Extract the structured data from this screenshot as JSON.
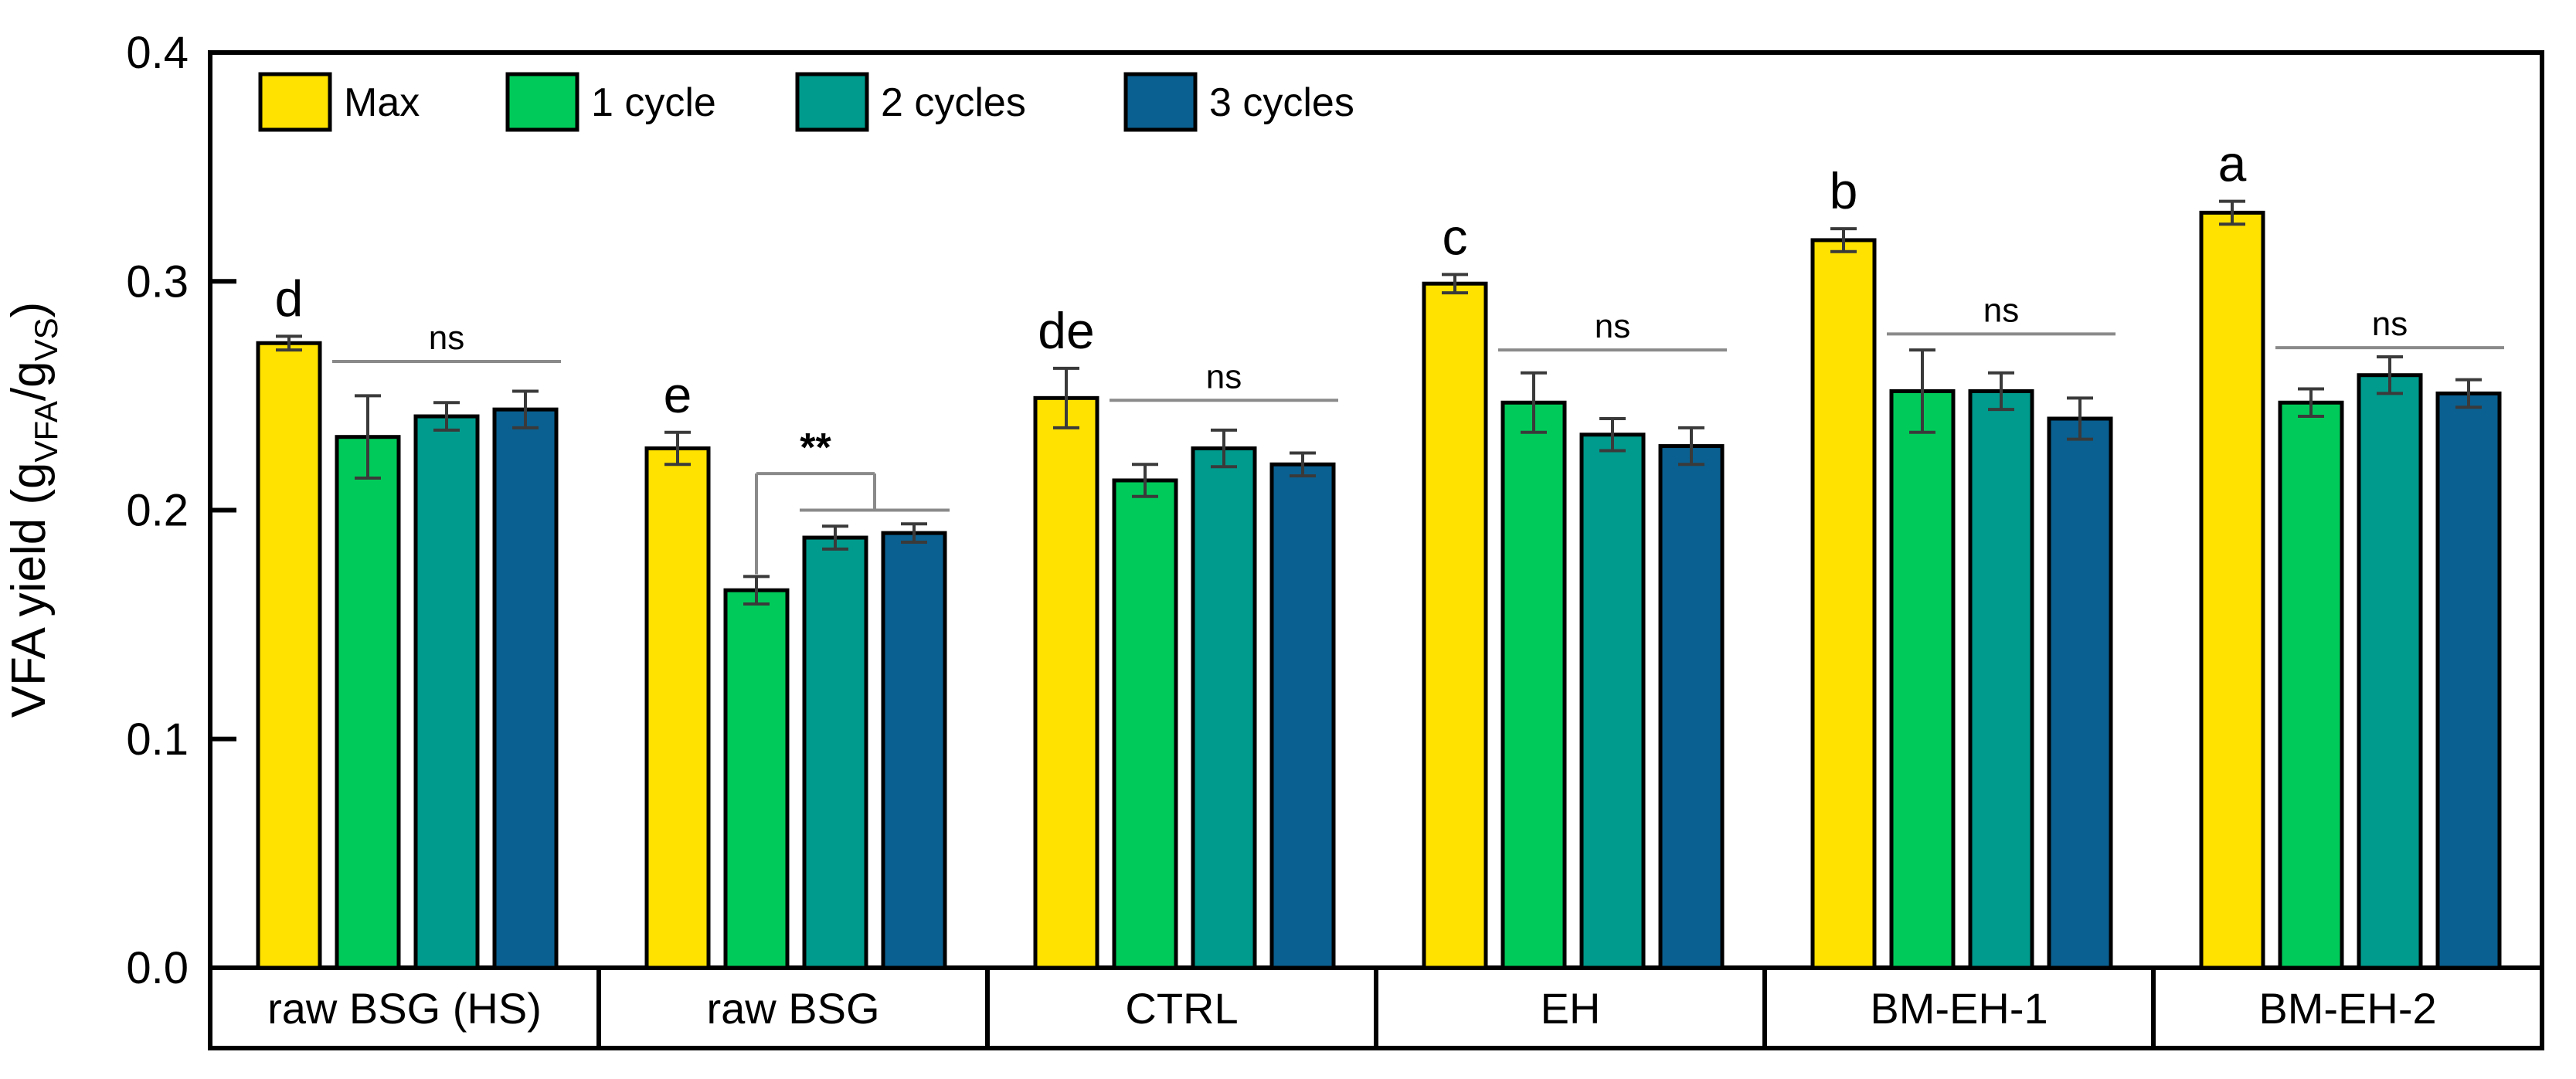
{
  "figure": {
    "background": "#ffffff",
    "frame_color": "#000000",
    "error_bar_color": "#3a3a3a",
    "sig_line_color": "#8a8a8a",
    "sig_text_color": "#1a1a1a"
  },
  "chart_data": {
    "type": "bar",
    "title": "",
    "xlabel": "",
    "ylabel": "VFA yield (g_VFA/g_VS)",
    "ylabel_parts": {
      "prefix": "VFA yield (g",
      "sub1": "VFA",
      "mid": "/g",
      "sub2": "VS",
      "suffix": ")"
    },
    "ylim": [
      0.0,
      0.4
    ],
    "y_ticks": [
      "0.0",
      "0.1",
      "0.2",
      "0.3",
      "0.4"
    ],
    "grid": false,
    "legend_position": "top-left-inside",
    "categories": [
      "raw BSG (HS)",
      "raw BSG",
      "CTRL",
      "EH",
      "BM-EH-1",
      "BM-EH-2"
    ],
    "series": [
      {
        "name": "Max",
        "color": "#FFE200",
        "values": [
          0.273,
          0.227,
          0.249,
          0.299,
          0.318,
          0.33
        ],
        "errors": [
          0.003,
          0.007,
          0.013,
          0.004,
          0.005,
          0.005
        ]
      },
      {
        "name": "1 cycle",
        "color": "#00CB5A",
        "values": [
          0.232,
          0.165,
          0.213,
          0.247,
          0.252,
          0.247
        ],
        "errors": [
          0.018,
          0.006,
          0.007,
          0.013,
          0.018,
          0.006
        ]
      },
      {
        "name": "2 cycles",
        "color": "#009B8C",
        "values": [
          0.241,
          0.188,
          0.227,
          0.233,
          0.252,
          0.259
        ],
        "errors": [
          0.006,
          0.005,
          0.008,
          0.007,
          0.008,
          0.008
        ]
      },
      {
        "name": "3 cycles",
        "color": "#0A6090",
        "values": [
          0.244,
          0.19,
          0.22,
          0.228,
          0.24,
          0.251
        ],
        "errors": [
          0.008,
          0.004,
          0.005,
          0.008,
          0.009,
          0.006
        ]
      }
    ],
    "max_bar_letters": [
      "d",
      "e",
      "de",
      "c",
      "b",
      "a"
    ],
    "significance": [
      {
        "group_index": 0,
        "type": "ns_line",
        "label": "ns",
        "line_y": 0.265
      },
      {
        "group_index": 1,
        "type": "bracket",
        "label": "**",
        "top_y": 0.216,
        "left_bottom_y": 0.172,
        "lower_line_y": 0.2
      },
      {
        "group_index": 2,
        "type": "ns_line",
        "label": "ns",
        "line_y": 0.248
      },
      {
        "group_index": 3,
        "type": "ns_line",
        "label": "ns",
        "line_y": 0.27
      },
      {
        "group_index": 4,
        "type": "ns_line",
        "label": "ns",
        "line_y": 0.277
      },
      {
        "group_index": 5,
        "type": "ns_line",
        "label": "ns",
        "line_y": 0.271
      }
    ]
  }
}
